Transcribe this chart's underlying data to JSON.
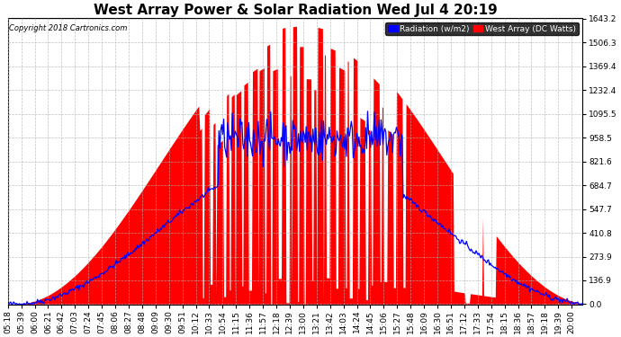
{
  "title": "West Array Power & Solar Radiation Wed Jul 4 20:19",
  "copyright": "Copyright 2018 Cartronics.com",
  "legend_labels": [
    "Radiation (w/m2)",
    "West Array (DC Watts)"
  ],
  "legend_colors": [
    "blue",
    "red"
  ],
  "yticks": [
    0.0,
    136.9,
    273.9,
    410.8,
    547.7,
    684.7,
    821.6,
    958.5,
    1095.5,
    1232.4,
    1369.4,
    1506.3,
    1643.2
  ],
  "ymax": 1643.2,
  "ymin": 0.0,
  "background_color": "#ffffff",
  "plot_bg_color": "#ffffff",
  "grid_color": "#b0b0b0",
  "title_fontsize": 11,
  "tick_label_fontsize": 6.5,
  "radiation_color": "blue",
  "power_color": "red",
  "num_points": 600
}
